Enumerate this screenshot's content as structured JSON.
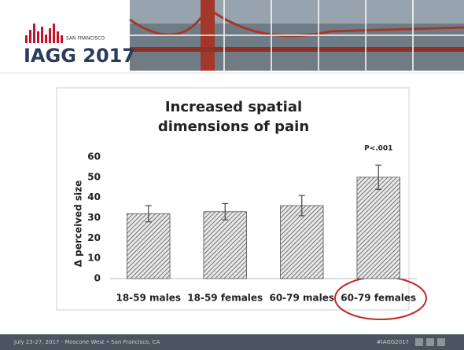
{
  "slide": {
    "logo_city": "SAN FRANCISCO",
    "logo_name": "IAGG 2017",
    "footer_left": "July 23-27, 2017 - Moscone West • San Francisco, CA",
    "footer_right": "#IAGG2017"
  },
  "chart_data": {
    "type": "bar",
    "title": "Increased spatial dimensions of pain",
    "ylabel": "Δ perceived size",
    "categories": [
      "18-59 males",
      "18-59 females",
      "60-79 males",
      "60-79 females"
    ],
    "values": [
      32,
      33,
      36,
      50
    ],
    "errors": [
      4,
      4,
      5,
      6
    ],
    "color": "#555555",
    "annotations": [
      {
        "text": "P<.001",
        "category": 3
      }
    ],
    "ylim": [
      0,
      60
    ],
    "yticks": [
      0,
      10,
      20,
      30,
      40,
      50,
      60
    ],
    "grid": false
  }
}
